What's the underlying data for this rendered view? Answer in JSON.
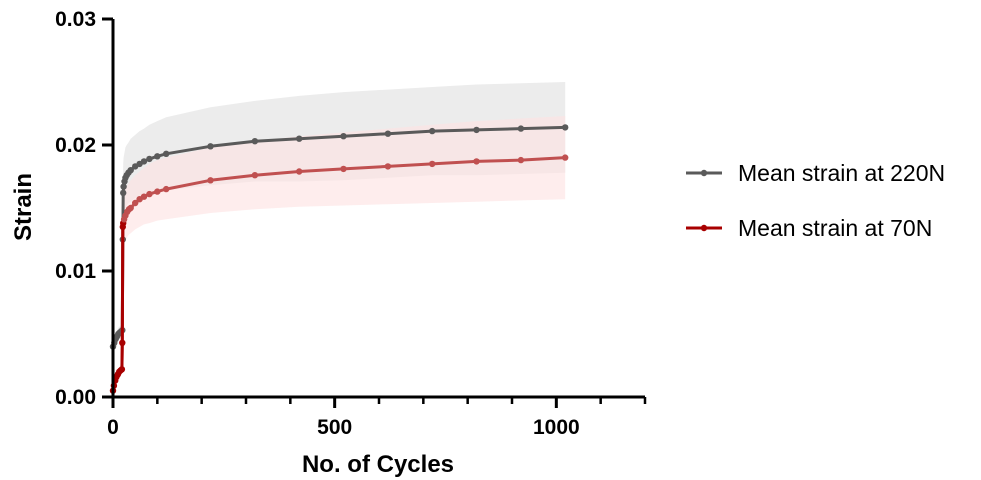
{
  "chart_data": {
    "type": "line",
    "title": "",
    "xlabel": "No. of Cycles",
    "ylabel": "Strain",
    "xlim": [
      0,
      1200
    ],
    "ylim": [
      0,
      0.03
    ],
    "x_ticks": [
      0,
      500,
      1000
    ],
    "x_tick_labels": [
      "0",
      "500",
      "1000"
    ],
    "x_minor_ticks": [
      100,
      200,
      300,
      400,
      600,
      700,
      800,
      900,
      1100,
      1200
    ],
    "y_ticks": [
      0,
      0.01,
      0.02,
      0.03
    ],
    "y_tick_labels": [
      "0.00",
      "0.01",
      "0.02",
      "0.03"
    ],
    "grid": false,
    "legend_position": "right",
    "series": [
      {
        "name": "Mean strain at 220N",
        "color": "#5a5a5a",
        "band_color": "#ececec",
        "x": [
          0,
          3,
          6,
          9,
          12,
          15,
          18,
          21,
          22,
          23,
          24,
          26,
          28,
          31,
          35,
          40,
          50,
          60,
          70,
          82,
          100,
          120,
          220,
          320,
          420,
          520,
          620,
          720,
          820,
          920,
          1020
        ],
        "values": [
          0.004,
          0.0043,
          0.0046,
          0.0048,
          0.005,
          0.0051,
          0.0052,
          0.0053,
          0.0125,
          0.0162,
          0.0167,
          0.0171,
          0.0174,
          0.0176,
          0.0178,
          0.018,
          0.0183,
          0.0185,
          0.0187,
          0.0189,
          0.0191,
          0.0193,
          0.0199,
          0.0203,
          0.0205,
          0.0207,
          0.0209,
          0.0211,
          0.0212,
          0.0213,
          0.0214
        ],
        "band_upper": [
          0.0045,
          0.0048,
          0.0051,
          0.0053,
          0.0055,
          0.0056,
          0.0057,
          0.0058,
          0.015,
          0.0185,
          0.019,
          0.0194,
          0.0198,
          0.02,
          0.0202,
          0.0205,
          0.0208,
          0.0211,
          0.0213,
          0.0216,
          0.0219,
          0.0222,
          0.023,
          0.0235,
          0.0239,
          0.0242,
          0.0244,
          0.0246,
          0.0248,
          0.0249,
          0.025
        ],
        "band_lower": [
          0.0035,
          0.0038,
          0.0041,
          0.0043,
          0.0045,
          0.0046,
          0.0047,
          0.0048,
          0.01,
          0.0139,
          0.0144,
          0.0148,
          0.015,
          0.0152,
          0.0154,
          0.0155,
          0.0158,
          0.0159,
          0.0161,
          0.0162,
          0.0163,
          0.0164,
          0.0168,
          0.0171,
          0.0171,
          0.0172,
          0.0174,
          0.0176,
          0.0176,
          0.0177,
          0.0178
        ]
      },
      {
        "name": "Mean strain at 70N",
        "color": "#a80000",
        "line_color_after": "#c05050",
        "band_color": "#fde3e3",
        "x": [
          0,
          2,
          5,
          8,
          11,
          14,
          17,
          20,
          21,
          22,
          23,
          25,
          28,
          32,
          36,
          40,
          50,
          60,
          70,
          82,
          100,
          120,
          220,
          320,
          420,
          520,
          620,
          720,
          820,
          920,
          1020
        ],
        "values": [
          0.0005,
          0.0009,
          0.0013,
          0.0016,
          0.0018,
          0.002,
          0.0021,
          0.0022,
          0.0043,
          0.0135,
          0.0138,
          0.0141,
          0.0144,
          0.0147,
          0.0149,
          0.015,
          0.0154,
          0.0157,
          0.0159,
          0.0161,
          0.0163,
          0.0165,
          0.0172,
          0.0176,
          0.0179,
          0.0181,
          0.0183,
          0.0185,
          0.0187,
          0.0188,
          0.019
        ],
        "band_upper": [
          0.0008,
          0.0012,
          0.0016,
          0.0019,
          0.0021,
          0.0023,
          0.0024,
          0.0025,
          0.005,
          0.0155,
          0.0158,
          0.0161,
          0.0165,
          0.0168,
          0.017,
          0.0172,
          0.0176,
          0.0179,
          0.0182,
          0.0185,
          0.0188,
          0.019,
          0.0198,
          0.0203,
          0.0207,
          0.021,
          0.0213,
          0.0216,
          0.0219,
          0.0221,
          0.0223
        ],
        "band_lower": [
          0.0002,
          0.0006,
          0.001,
          0.0013,
          0.0015,
          0.0017,
          0.0018,
          0.0019,
          0.0036,
          0.0115,
          0.0118,
          0.0121,
          0.0124,
          0.0127,
          0.0129,
          0.013,
          0.0133,
          0.0135,
          0.0137,
          0.0138,
          0.014,
          0.0141,
          0.0146,
          0.0149,
          0.0151,
          0.0152,
          0.0153,
          0.0154,
          0.0155,
          0.0156,
          0.0157
        ]
      }
    ]
  }
}
